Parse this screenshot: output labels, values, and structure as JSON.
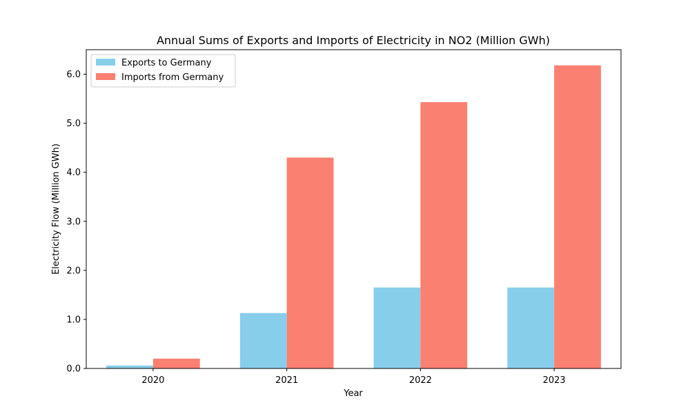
{
  "chart_data": {
    "type": "bar",
    "title": "Annual Sums of Exports and Imports of Electricity in NO2 (Million GWh)",
    "xlabel": "Year",
    "ylabel": "Electricity Flow (Million GWh)",
    "categories": [
      "2020",
      "2021",
      "2022",
      "2023"
    ],
    "series": [
      {
        "name": "Exports to Germany",
        "values": [
          0.06,
          1.13,
          1.65,
          1.65
        ],
        "color": "#87CEEB"
      },
      {
        "name": "Imports from Germany",
        "values": [
          0.2,
          4.3,
          5.43,
          6.18
        ],
        "color": "#FA8072"
      }
    ],
    "ylim": [
      0,
      6.5
    ],
    "yticks": [
      0,
      1,
      2,
      3,
      4,
      5,
      6
    ],
    "ytick_labels": [
      "0.0",
      "1.0",
      "2.0",
      "3.0",
      "4.0",
      "5.0",
      "6.0"
    ],
    "grid": false,
    "legend_position": "upper-left"
  }
}
